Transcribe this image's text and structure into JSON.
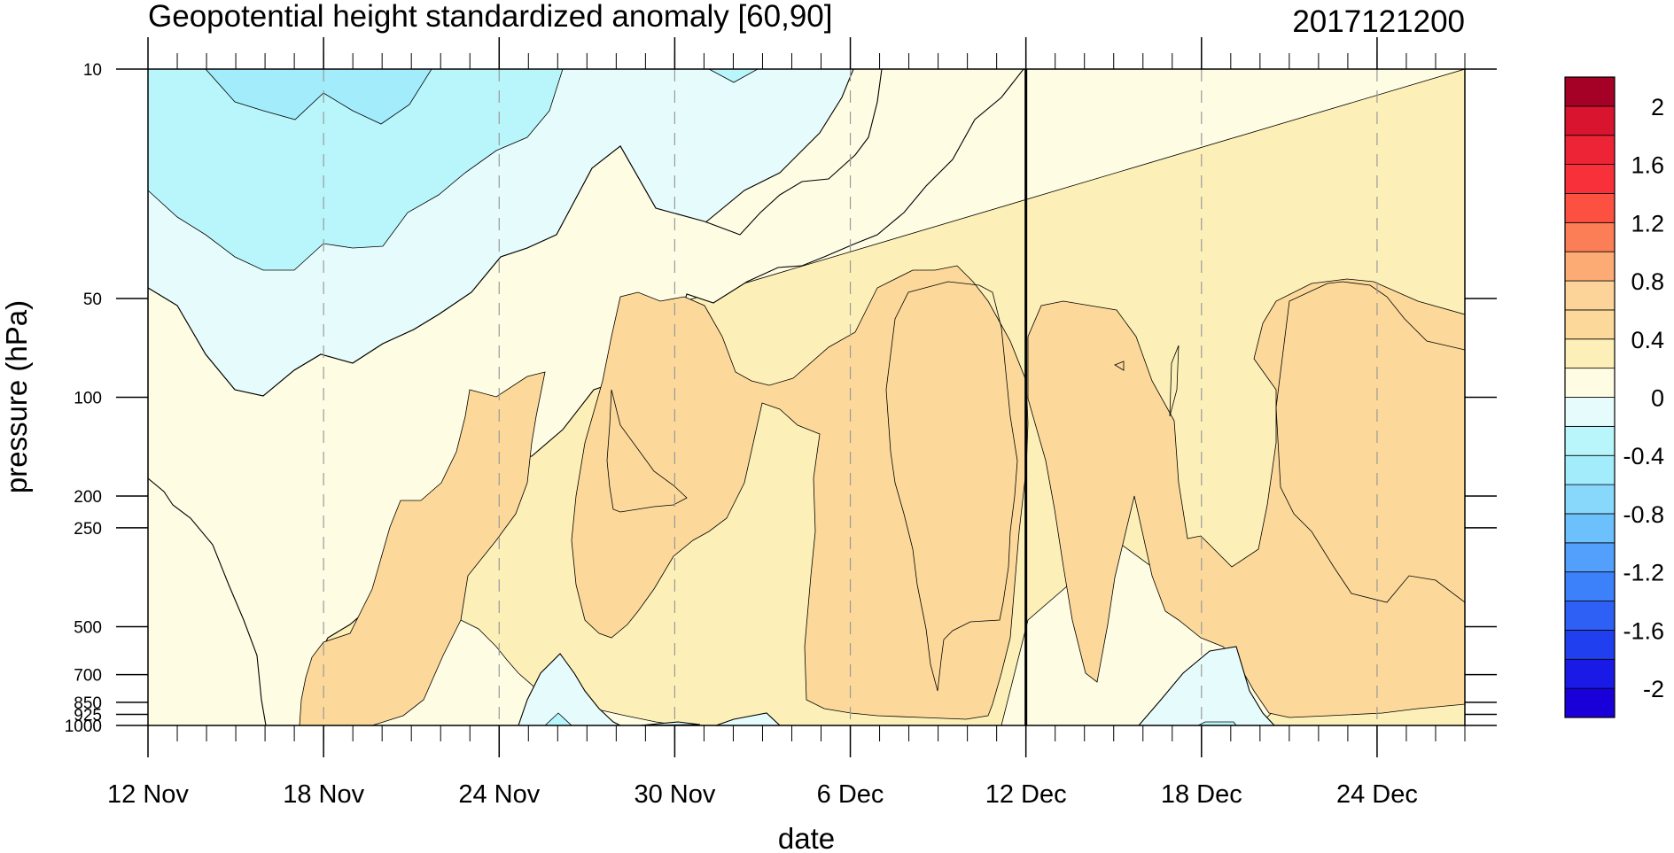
{
  "chart_data": {
    "type": "heatmap",
    "title": "Geopotential height standardized anomaly [60,90]",
    "date_stamp": "2017121200",
    "xlabel": "date",
    "ylabel": "pressure (hPa)",
    "x_range": [
      "2017-11-12",
      "2017-12-27"
    ],
    "x_tick_labels": [
      "12 Nov",
      "18 Nov",
      "24 Nov",
      "30 Nov",
      "6 Dec",
      "12 Dec",
      "18 Dec",
      "24 Dec"
    ],
    "x_major_ticks": [
      "2017-11-12",
      "2017-11-18",
      "2017-11-24",
      "2017-11-30",
      "2017-12-06",
      "2017-12-12",
      "2017-12-18",
      "2017-12-24"
    ],
    "y_scale": "log",
    "y_range": [
      1000,
      10
    ],
    "y_ticks": [
      10,
      50,
      100,
      200,
      250,
      500,
      700,
      850,
      925,
      1000
    ],
    "y_tick_labels": [
      "10",
      "50",
      "100",
      "200",
      "250",
      "500",
      "700",
      "850",
      "925",
      "1000"
    ],
    "marker_line_date": "2017-12-12",
    "grid": "dashed vertical lines at major date ticks",
    "colorbar": {
      "placement": "right",
      "levels": [
        -2.2,
        -2,
        -1.8,
        -1.6,
        -1.4,
        -1.2,
        -1,
        -0.8,
        -0.6,
        -0.4,
        -0.2,
        0,
        0.2,
        0.4,
        0.6,
        0.8,
        1,
        1.2,
        1.4,
        1.6,
        1.8,
        2,
        2.2
      ],
      "colors": [
        "#1a00d8",
        "#1a1ae6",
        "#2040f0",
        "#2e60f6",
        "#3c80fa",
        "#52a0fc",
        "#6cc0fc",
        "#88d8fc",
        "#a2ecfc",
        "#b8f6fc",
        "#e6fcfc",
        "#fffce4",
        "#fcf0b8",
        "#fcd99a",
        "#fcd499",
        "#fcab74",
        "#fc7e56",
        "#fc5040",
        "#f8303a",
        "#ec2436",
        "#d8142e",
        "#a50026"
      ],
      "label_values": [
        2,
        1.6,
        1.2,
        0.8,
        0.4,
        0,
        -0.4,
        -0.8,
        -1.2,
        -1.6,
        -2
      ],
      "labels": [
        "2",
        "1.6",
        "1.2",
        "0.8",
        "0.4",
        "0",
        "-0.4",
        "-0.8",
        "-1.2",
        "-1.6",
        "-2"
      ]
    },
    "field_regions": [
      {
        "value": 0.1,
        "color": "#fffce4",
        "desc": "background 0 to 0.2"
      },
      {
        "value": 0.3,
        "color": "#fcf0b8",
        "desc": "0.2 to 0.4 regions"
      },
      {
        "value": 0.5,
        "color": "#fcd99a",
        "desc": "0.4 to 0.6 core regions"
      },
      {
        "value": -0.1,
        "color": "#e6fcfc",
        "desc": "0 to -0.2 upper-left region"
      },
      {
        "value": -0.3,
        "color": "#b8f6fc",
        "desc": "-0.2 to -0.4 upper-left region"
      },
      {
        "value": -0.5,
        "color": "#a2ecfc",
        "desc": "-0.4 to -0.6 core near 10 hPa"
      }
    ]
  }
}
